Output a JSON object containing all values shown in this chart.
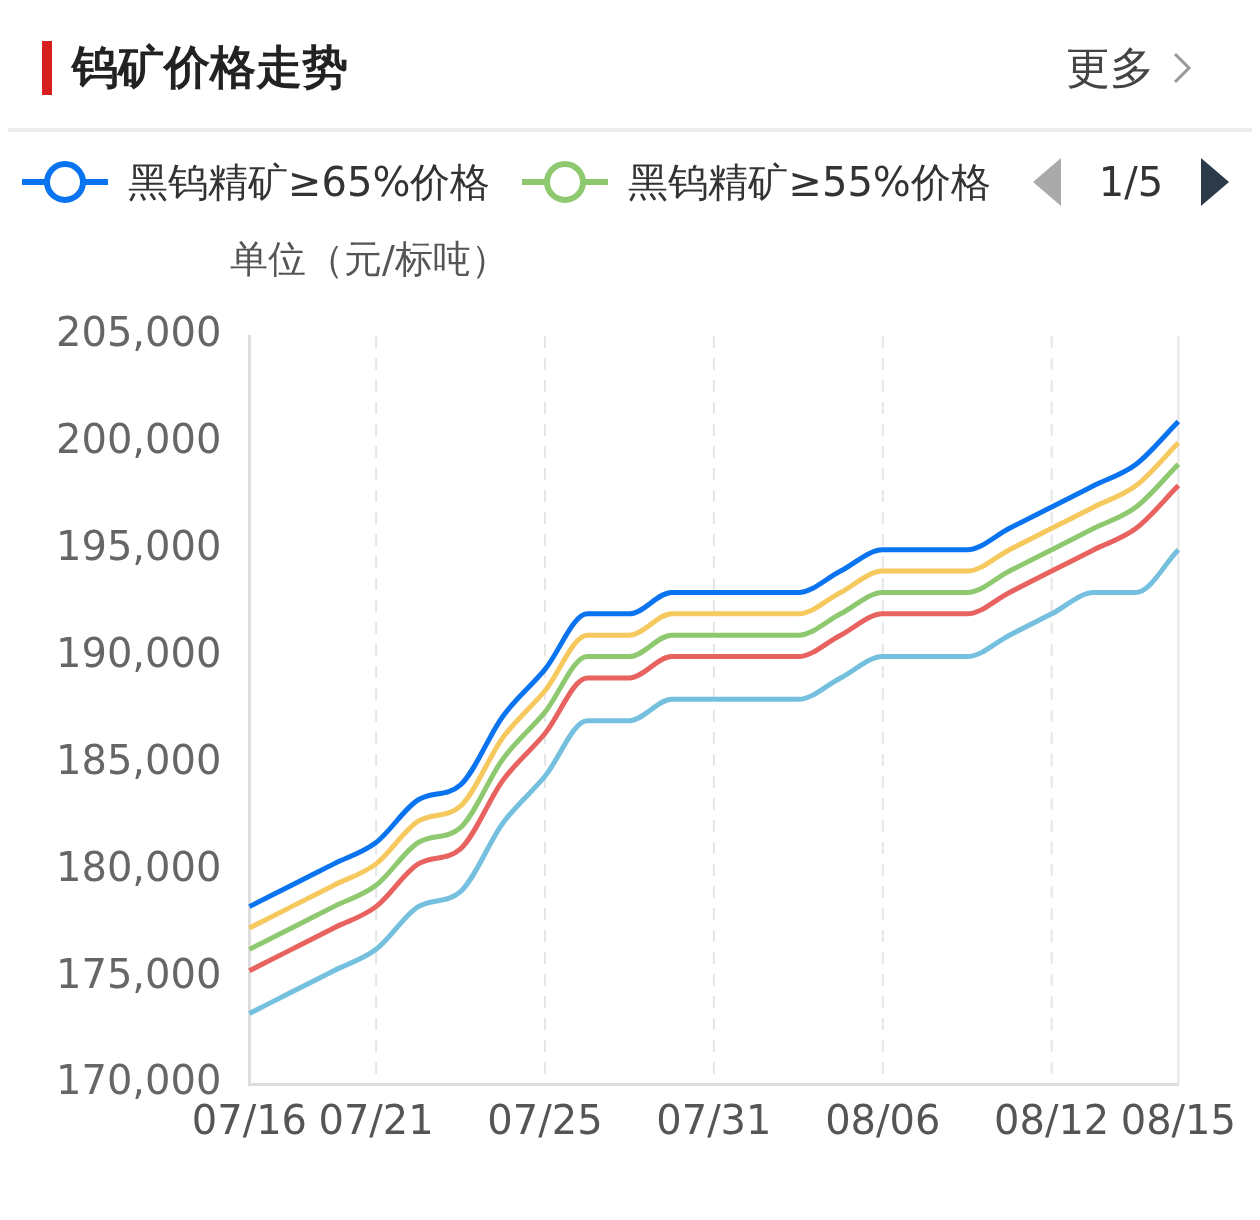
{
  "chart_data": {
    "type": "line",
    "title": "钨矿价格走势",
    "ylabel": "单位（元/标吨）",
    "annotations": [
      "更多",
      "1/5"
    ],
    "categories": [
      "07/16",
      null,
      null,
      "07/21",
      null,
      null,
      null,
      "07/25",
      null,
      null,
      null,
      "07/31",
      null,
      null,
      null,
      "08/06",
      null,
      null,
      null,
      "08/12",
      null,
      null,
      "08/15"
    ],
    "series": [
      {
        "name": "黑钨精矿≥65%价格",
        "color": "#0a74f0",
        "values": [
          178300,
          179300,
          180300,
          181300,
          183300,
          184000,
          187200,
          189400,
          192000,
          192000,
          193000,
          193000,
          193000,
          193000,
          194000,
          195000,
          195000,
          195000,
          196000,
          197000,
          198000,
          199000,
          201000
        ]
      },
      {
        "color": "#f5c95e",
        "values": [
          177300,
          178300,
          179300,
          180300,
          182300,
          183000,
          186200,
          188400,
          191000,
          191000,
          192000,
          192000,
          192000,
          192000,
          193000,
          194000,
          194000,
          194000,
          195000,
          196000,
          197000,
          198000,
          200000
        ]
      },
      {
        "name": "黑钨精矿≥55%价格",
        "color": "#8ec96f",
        "values": [
          176300,
          177300,
          178300,
          179300,
          181300,
          182000,
          185200,
          187400,
          190000,
          190000,
          191000,
          191000,
          191000,
          191000,
          192000,
          193000,
          193000,
          193000,
          194000,
          195000,
          196000,
          197000,
          199000
        ]
      },
      {
        "color": "#e8635f",
        "values": [
          175300,
          176300,
          177300,
          178300,
          180300,
          181000,
          184200,
          186400,
          189000,
          189000,
          190000,
          190000,
          190000,
          190000,
          191000,
          192000,
          192000,
          192000,
          193000,
          194000,
          195000,
          196000,
          198000
        ]
      },
      {
        "color": "#74c0de",
        "values": [
          173300,
          174300,
          175300,
          176300,
          178300,
          179000,
          182200,
          184400,
          187000,
          187000,
          188000,
          188000,
          188000,
          188000,
          189000,
          190000,
          190000,
          190000,
          191000,
          192000,
          193000,
          193000,
          195000
        ]
      }
    ],
    "ylim": [
      170000,
      205000
    ],
    "yticks": [
      {
        "value": 170000,
        "label": "170,000"
      },
      {
        "value": 175000,
        "label": "175,000"
      },
      {
        "value": 180000,
        "label": "180,000"
      },
      {
        "value": 185000,
        "label": "185,000"
      },
      {
        "value": 190000,
        "label": "190,000"
      },
      {
        "value": 195000,
        "label": "195,000"
      },
      {
        "value": 200000,
        "label": "200,000"
      },
      {
        "value": 205000,
        "label": "205,000"
      }
    ],
    "grid": "x",
    "legend": "top"
  }
}
